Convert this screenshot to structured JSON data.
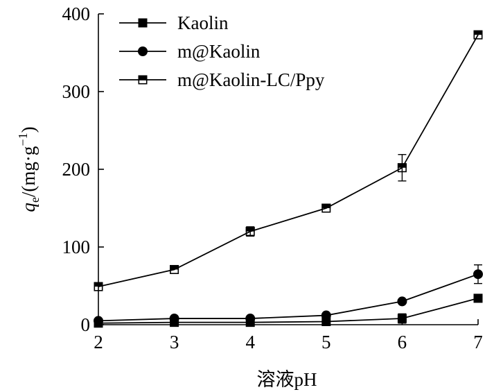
{
  "chart_data": {
    "type": "line",
    "title": "",
    "xlabel": "溶液pH",
    "ylabel": {
      "var": "q",
      "sub": "e",
      "unit_open": "/(mg·g",
      "sup": "−1",
      "unit_close": ")"
    },
    "x": [
      2,
      3,
      4,
      5,
      6,
      7
    ],
    "xlim": [
      2,
      7
    ],
    "ylim": [
      0,
      400
    ],
    "xticks": [
      "2",
      "3",
      "4",
      "5",
      "6",
      "7"
    ],
    "yticks": [
      "0",
      "100",
      "200",
      "300",
      "400"
    ],
    "grid": false,
    "legend_position": "top-left",
    "series": [
      {
        "name": "Kaolin",
        "marker": "filled-square",
        "values": [
          2,
          3,
          3,
          4,
          8,
          34
        ],
        "error": [
          0,
          0,
          0,
          0,
          6,
          0
        ]
      },
      {
        "name": "m@Kaolin",
        "marker": "filled-circle",
        "values": [
          5,
          8,
          8,
          12,
          30,
          65
        ],
        "error": [
          0,
          0,
          0,
          0,
          0,
          12
        ]
      },
      {
        "name": "m@Kaolin-LC/Ppy",
        "marker": "half-filled-square",
        "values": [
          49,
          71,
          120,
          150,
          202,
          373
        ],
        "error": [
          0,
          0,
          6,
          0,
          17,
          0
        ]
      }
    ]
  },
  "colors": {
    "line": "#000000",
    "background": "#ffffff"
  }
}
